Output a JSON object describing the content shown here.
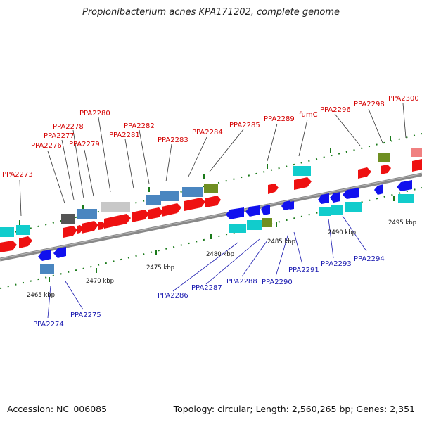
{
  "title": "Propionibacterium acnes KPA171202, complete genome",
  "accession": "Accession: NC_006085",
  "summary": "Topology: circular; Length: 2,560,265 bp; Genes: 2,351",
  "ticks": [
    {
      "label": "2465 kbp"
    },
    {
      "label": "2470 kbp"
    },
    {
      "label": "2475 kbp"
    },
    {
      "label": "2480 kbp"
    },
    {
      "label": "2485 kbp"
    },
    {
      "label": "2490 kbp"
    },
    {
      "label": "2495 kbp"
    }
  ],
  "forward_labels": [
    "PPA2273",
    "PPA2276",
    "PPA2277",
    "PPA2278",
    "PPA2279",
    "PPA2280",
    "PPA2281",
    "PPA2282",
    "PPA2283",
    "PPA2284",
    "PPA2285",
    "PPA2289",
    "fumC",
    "PPA2296",
    "PPA2298",
    "PPA2300"
  ],
  "reverse_labels": [
    "PPA2274",
    "PPA2275",
    "PPA2286",
    "PPA2287",
    "PPA2288",
    "PPA2290",
    "PPA2291",
    "PPA2293",
    "PPA2294"
  ],
  "colors": {
    "forward_gene": "#ee1111",
    "reverse_gene": "#1111ee",
    "cds_blue": "#4a86c0",
    "cds_cyan": "#11cccc",
    "cds_olive": "#6f8f22",
    "cds_gray": "#c8c8c8",
    "cds_dark": "#555555",
    "cds_pink": "#f08080",
    "backbone": "#888888",
    "tick_green": "#1a7a1a"
  }
}
